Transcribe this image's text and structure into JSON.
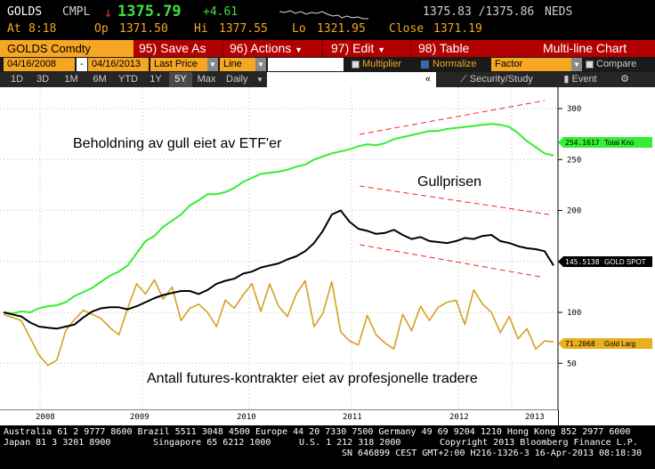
{
  "ticker": {
    "symbol": "GOLDS",
    "exchange": "CMPL",
    "arrow": "↓",
    "price": "1375.79",
    "change": "+4.61",
    "bid_ask": "1375.83 /1375.86",
    "source": "NEDS",
    "at_label": "At",
    "time": "8:18",
    "op_label": "Op",
    "open": "1371.50",
    "hi_label": "Hi",
    "high": "1377.55",
    "lo_label": "Lo",
    "low": "1321.95",
    "close_label": "Close",
    "close": "1371.19"
  },
  "menubar": {
    "security": "GOLDS Comdty",
    "save_as": "95) Save As",
    "actions": "96) Actions",
    "edit": "97) Edit",
    "table": "98) Table",
    "title": "Multi-line Chart"
  },
  "toolbar": {
    "start_date": "04/16/2008",
    "dash": "-",
    "end_date": "04/16/2013",
    "field": "Last Price",
    "style": "Line",
    "multiplier": "Multiplier",
    "normalize": "Normalize",
    "factor": "Factor",
    "compare": "Compare"
  },
  "rangebar": {
    "ranges": [
      "1D",
      "3D",
      "1M",
      "6M",
      "YTD",
      "1Y",
      "5Y",
      "Max"
    ],
    "active": "5Y",
    "frequency": "Daily",
    "collapse": "«",
    "security_study": "Security/Study",
    "event": "Event"
  },
  "chart_data": {
    "type": "line",
    "right_axis_ticks": [
      "300",
      "250",
      "200",
      "150",
      "100",
      "50"
    ],
    "x_tick_labels": [
      "2008",
      "2009",
      "2010",
      "2011",
      "2012",
      "2013"
    ],
    "annotations": [
      "Beholdning av gull eiet av ETF'er",
      "Gullprisen",
      "Antall futures-kontrakter eiet av profesjonelle tradere"
    ],
    "series": [
      {
        "name": "Total Kno",
        "color": "#33ee33",
        "last": "254.1617",
        "values": [
          100,
          99,
          101,
          100,
          104,
          106,
          107,
          110,
          116,
          120,
          124,
          130,
          136,
          140,
          146,
          158,
          170,
          175,
          184,
          190,
          196,
          205,
          210,
          216,
          216,
          218,
          222,
          228,
          232,
          236,
          237,
          238,
          240,
          243,
          245,
          250,
          253,
          256,
          258,
          260,
          263,
          265,
          264,
          266,
          270,
          272,
          274,
          276,
          278,
          278,
          280,
          281,
          282,
          283,
          284,
          285,
          284,
          282,
          276,
          268,
          262,
          256,
          254
        ]
      },
      {
        "name": "GOLD SPOT",
        "color": "#000000",
        "last": "145.5138",
        "values": [
          100,
          98,
          96,
          90,
          86,
          85,
          84,
          86,
          88,
          95,
          101,
          104,
          105,
          105,
          103,
          106,
          110,
          114,
          117,
          119,
          121,
          121,
          118,
          122,
          128,
          131,
          133,
          138,
          140,
          144,
          146,
          148,
          152,
          155,
          160,
          168,
          180,
          196,
          200,
          189,
          182,
          180,
          177,
          178,
          181,
          176,
          172,
          174,
          170,
          169,
          168,
          170,
          173,
          172,
          175,
          176,
          170,
          168,
          165,
          163,
          162,
          160,
          146
        ]
      },
      {
        "name": "Gold Larg",
        "color": "#d4a020",
        "last": "71.2068",
        "values": [
          98,
          95,
          92,
          75,
          58,
          48,
          53,
          82,
          93,
          102,
          98,
          94,
          85,
          78,
          104,
          128,
          118,
          132,
          113,
          125,
          92,
          104,
          108,
          100,
          86,
          112,
          104,
          117,
          128,
          101,
          128,
          106,
          96,
          118,
          131,
          86,
          99,
          130,
          81,
          72,
          68,
          97,
          78,
          70,
          64,
          98,
          82,
          106,
          92,
          105,
          110,
          112,
          88,
          122,
          108,
          100,
          80,
          96,
          74,
          84,
          64,
          72,
          71
        ]
      }
    ]
  },
  "footer": {
    "line1": "Australia 61 2 9777 8600 Brazil 5511 3048 4500 Europe 44 20 7330 7500 Germany 49 69 9204 1210 Hong Kong 852 2977 6000",
    "line2_left": "Japan 81 3 3201 8900",
    "line2_mid": "Singapore 65 6212 1000",
    "line2_mid2": "U.S. 1 212 318 2000",
    "line2_right": "Copyright 2013 Bloomberg Finance L.P.",
    "line3": "SN 646899 CEST GMT+2:00 H216-1326-3 16-Apr-2013 08:18:30"
  }
}
